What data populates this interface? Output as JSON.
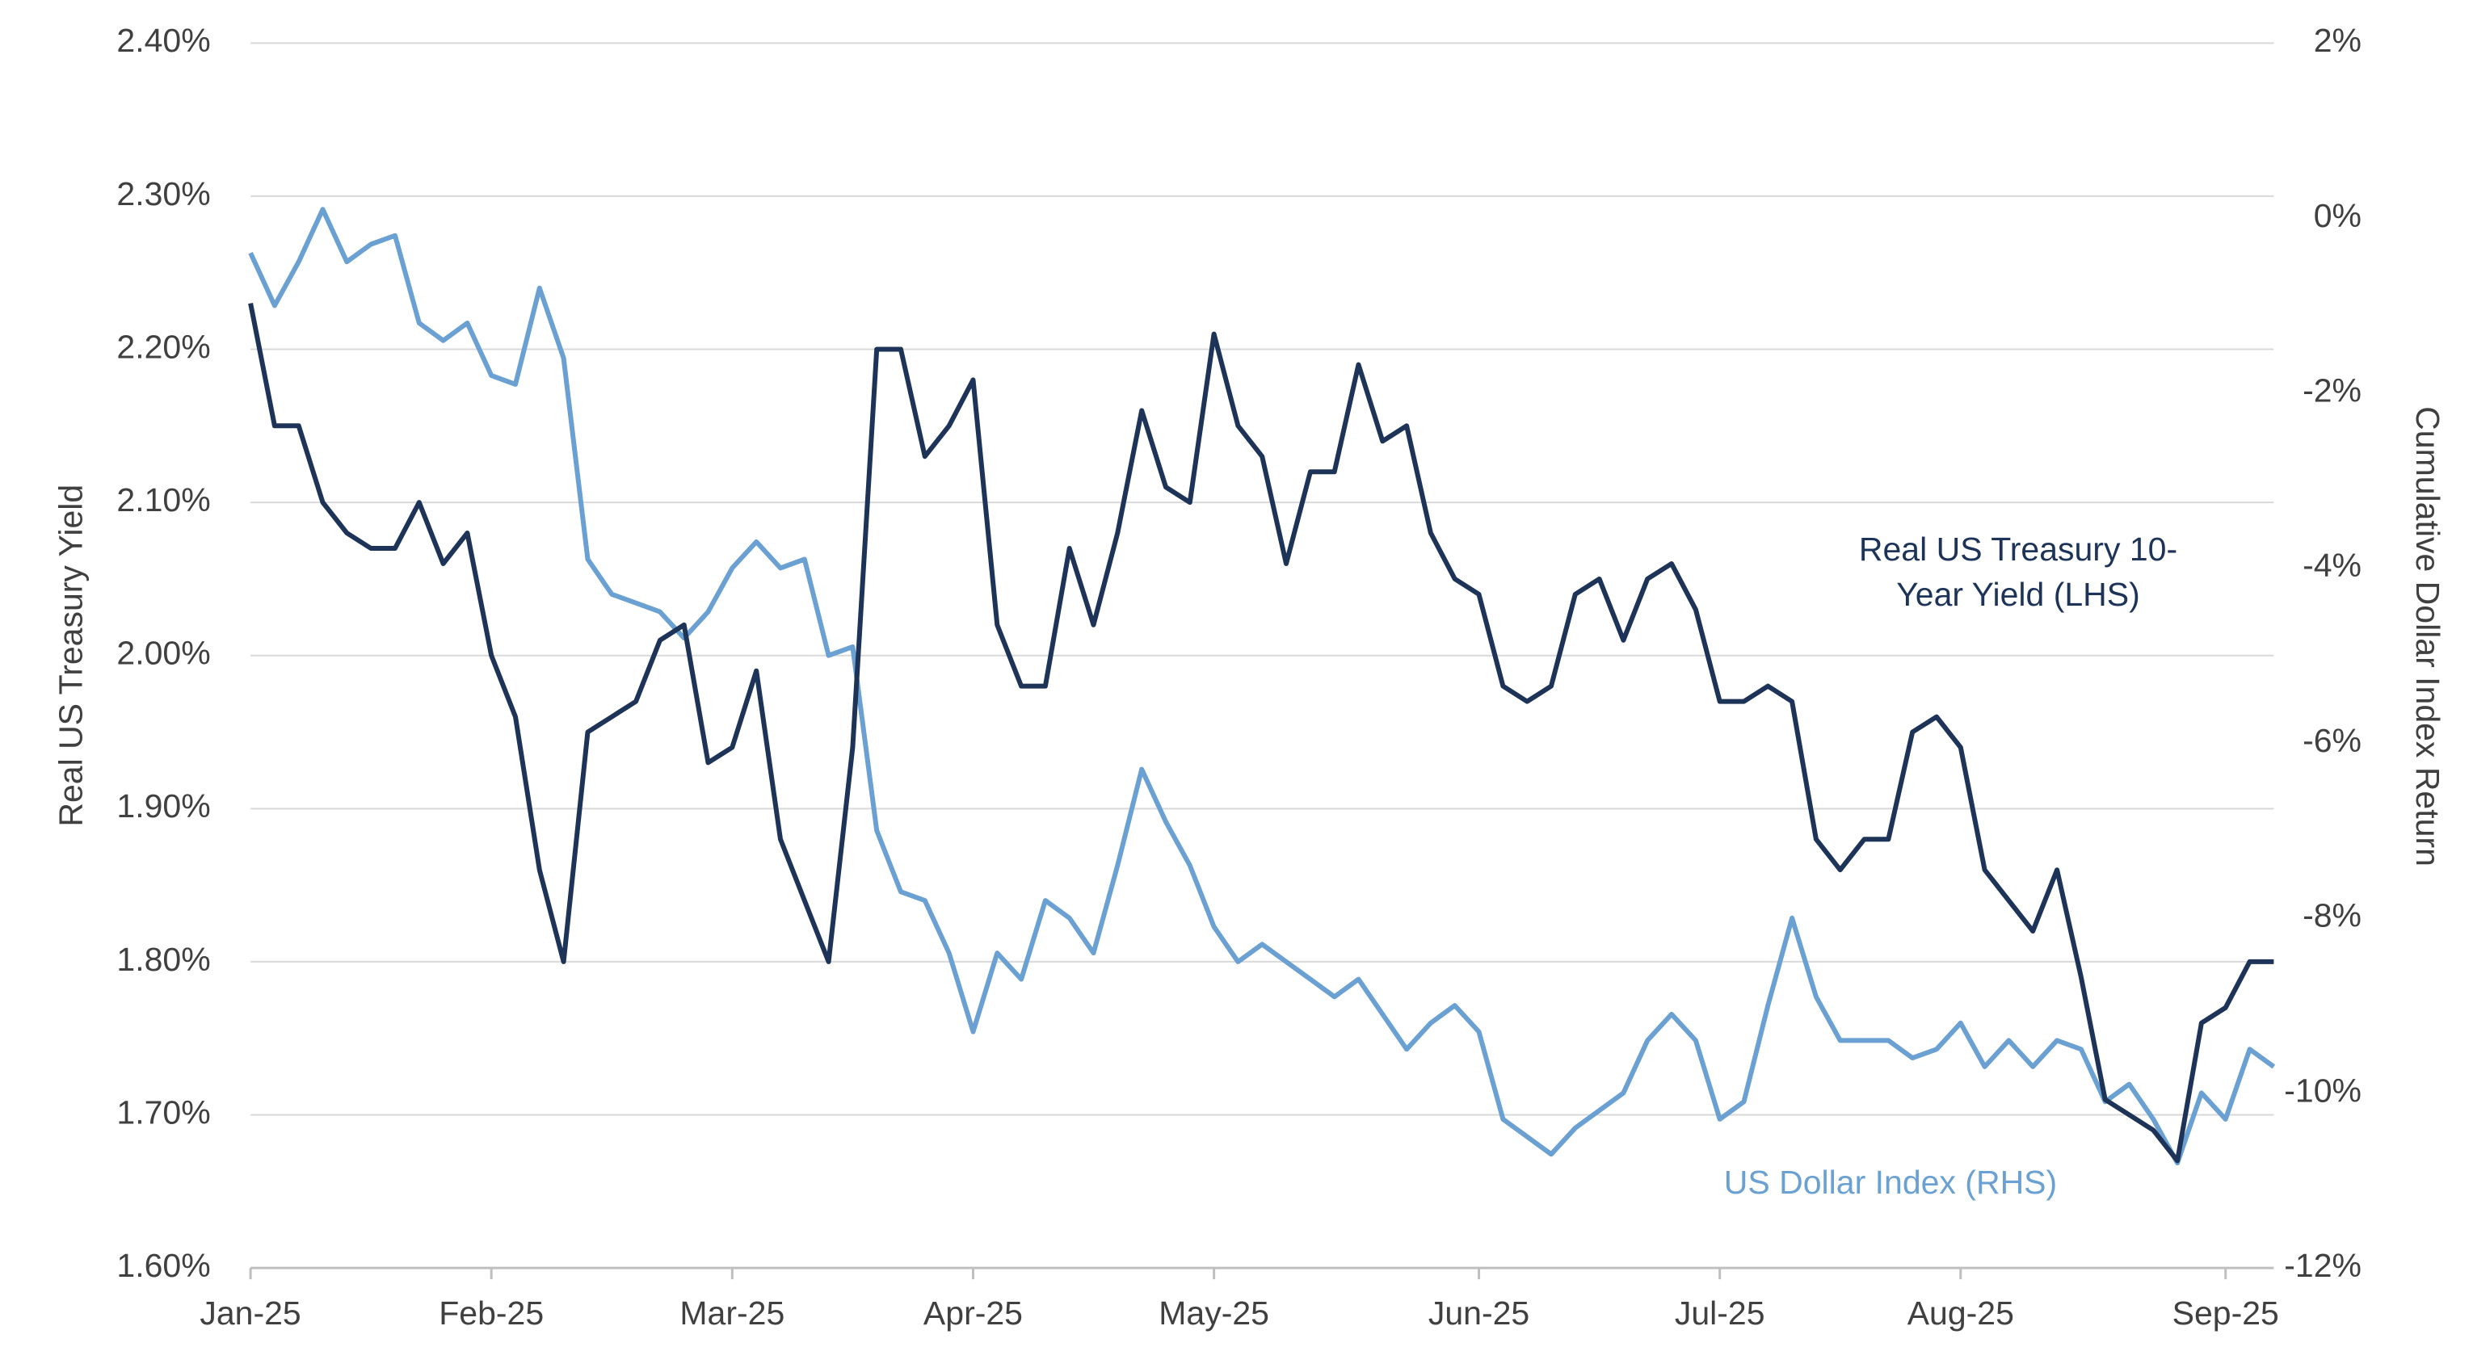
{
  "chart_data": {
    "type": "line",
    "ylabel": "Real US Treasury Yield",
    "y2label": "Cumulative Dollar Index Return",
    "categories": [
      "Jan-25",
      null,
      null,
      null,
      null,
      null,
      null,
      null,
      null,
      null,
      "Feb-25",
      null,
      null,
      null,
      null,
      null,
      null,
      null,
      null,
      null,
      "Mar-25",
      null,
      null,
      null,
      null,
      null,
      null,
      null,
      null,
      null,
      "Apr-25",
      null,
      null,
      null,
      null,
      null,
      null,
      null,
      null,
      null,
      "May-25",
      null,
      null,
      null,
      null,
      null,
      null,
      null,
      null,
      null,
      null,
      "Jun-25",
      null,
      null,
      null,
      null,
      null,
      null,
      null,
      null,
      null,
      "Jul-25",
      null,
      null,
      null,
      null,
      null,
      null,
      null,
      null,
      null,
      "Aug-25",
      null,
      null,
      null,
      null,
      null,
      null,
      null,
      null,
      null,
      null,
      "Sep-25",
      null,
      null
    ],
    "series": [
      {
        "name": "Real US Treasury 10-Year Yield (LHS)",
        "color": "#1d3458",
        "axis": "y",
        "values": [
          2.23,
          2.15,
          2.15,
          2.1,
          2.08,
          2.07,
          2.07,
          2.1,
          2.06,
          2.08,
          2.0,
          1.96,
          1.86,
          1.8,
          1.95,
          1.96,
          1.97,
          2.01,
          2.02,
          1.93,
          1.94,
          1.99,
          1.88,
          1.84,
          1.8,
          1.94,
          2.2,
          2.2,
          2.13,
          2.15,
          2.18,
          2.02,
          1.98,
          1.98,
          2.07,
          2.02,
          2.08,
          2.16,
          2.11,
          2.1,
          2.21,
          2.15,
          2.13,
          2.06,
          2.12,
          2.12,
          2.19,
          2.14,
          2.15,
          2.08,
          2.05,
          2.04,
          1.98,
          1.97,
          1.98,
          2.04,
          2.05,
          2.01,
          2.05,
          2.06,
          2.03,
          1.97,
          1.97,
          1.98,
          1.97,
          1.88,
          1.86,
          1.88,
          1.88,
          1.95,
          1.96,
          1.94,
          1.86,
          1.84,
          1.82,
          1.86,
          1.79,
          1.71,
          1.7,
          1.69,
          1.67,
          1.76,
          1.77,
          1.8,
          1.8
        ]
      },
      {
        "name": "US Dollar Index (RHS)",
        "color": "#6aa0d2",
        "axis": "y2",
        "values": [
          -0.4,
          -1.0,
          -0.5,
          0.1,
          -0.5,
          -0.3,
          -0.2,
          -1.2,
          -1.4,
          -1.2,
          -1.8,
          -1.9,
          -0.8,
          -1.6,
          -3.9,
          -4.3,
          -4.4,
          -4.5,
          -4.8,
          -4.5,
          -4.0,
          -3.7,
          -4.0,
          -3.9,
          -5.0,
          -4.9,
          -7.0,
          -7.7,
          -7.8,
          -8.4,
          -9.3,
          -8.4,
          -8.7,
          -7.8,
          -8.0,
          -8.4,
          -7.4,
          -6.3,
          -6.9,
          -7.4,
          -8.1,
          -8.5,
          -8.3,
          -8.5,
          -8.7,
          -8.9,
          -8.7,
          -9.1,
          -9.5,
          -9.2,
          -9.0,
          -9.3,
          -10.3,
          -10.5,
          -10.7,
          -10.4,
          -10.2,
          -10.0,
          -9.4,
          -9.1,
          -9.4,
          -10.3,
          -10.1,
          -9.0,
          -8.0,
          -8.9,
          -9.4,
          -9.4,
          -9.4,
          -9.6,
          -9.5,
          -9.2,
          -9.7,
          -9.4,
          -9.7,
          -9.4,
          -9.5,
          -10.1,
          -9.9,
          -10.3,
          -10.8,
          -10.0,
          -10.3,
          -9.5,
          -9.7
        ]
      }
    ],
    "ylim": [
      1.6,
      2.4
    ],
    "yticks": [
      {
        "value": 2.4,
        "label": "2.40%"
      },
      {
        "value": 2.3,
        "label": "2.30%"
      },
      {
        "value": 2.2,
        "label": "2.20%"
      },
      {
        "value": 2.1,
        "label": "2.10%"
      },
      {
        "value": 2.0,
        "label": "2.00%"
      },
      {
        "value": 1.9,
        "label": "1.90%"
      },
      {
        "value": 1.8,
        "label": "1.80%"
      },
      {
        "value": 1.7,
        "label": "1.70%"
      },
      {
        "value": 1.6,
        "label": "1.60%"
      }
    ],
    "y2lim": [
      -12,
      2
    ],
    "y2ticks": [
      {
        "value": 2,
        "label": "2%"
      },
      {
        "value": 0,
        "label": "0%"
      },
      {
        "value": -2,
        "label": "-2%"
      },
      {
        "value": -4,
        "label": "-4%"
      },
      {
        "value": -6,
        "label": "-6%"
      },
      {
        "value": -8,
        "label": "-8%"
      },
      {
        "value": -10,
        "label": "-10%"
      },
      {
        "value": -12,
        "label": "-12%"
      }
    ],
    "grid": true
  }
}
